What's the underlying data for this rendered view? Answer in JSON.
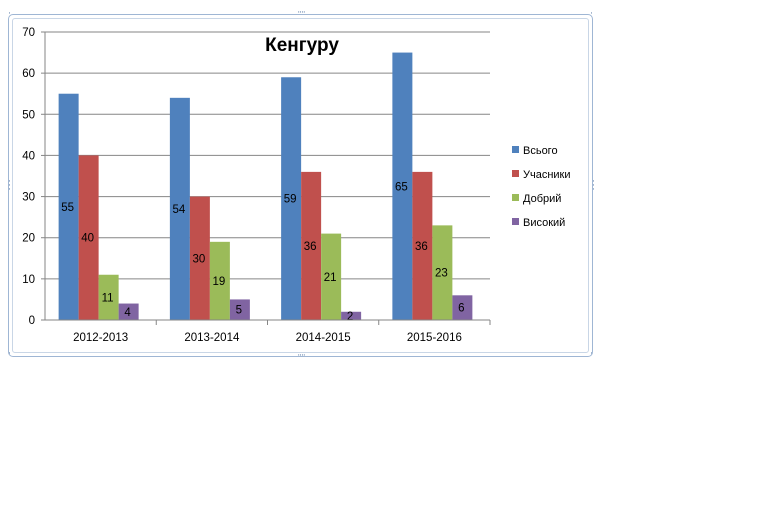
{
  "chart_data": {
    "type": "bar",
    "title": "Кенгуру",
    "xlabel": "",
    "ylabel": "",
    "categories": [
      "2012-2013",
      "2013-2014",
      "2014-2015",
      "2015-2016"
    ],
    "series": [
      {
        "name": "Всього",
        "values": [
          55,
          54,
          59,
          65
        ],
        "color": "#4f81bd"
      },
      {
        "name": "Учасники",
        "values": [
          40,
          30,
          36,
          36
        ],
        "color": "#c0504d"
      },
      {
        "name": "Добрий",
        "values": [
          11,
          19,
          21,
          23
        ],
        "color": "#9bbb59"
      },
      {
        "name": "Високий",
        "values": [
          4,
          5,
          2,
          6
        ],
        "color": "#8064a2"
      }
    ],
    "ylim": [
      0,
      70
    ],
    "yticks": [
      0,
      10,
      20,
      30,
      40,
      50,
      60,
      70
    ],
    "grid": true,
    "data_labels": true,
    "legend_position": "right"
  }
}
